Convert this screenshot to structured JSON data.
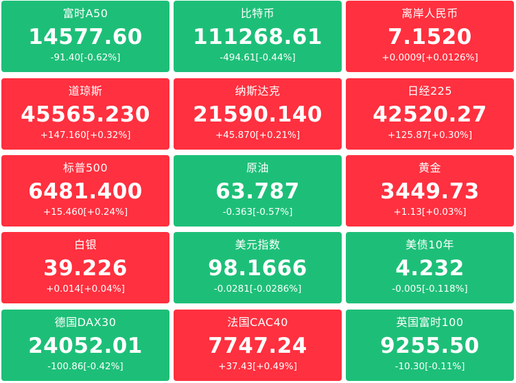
{
  "colors": {
    "up": "#ff303f",
    "down": "#1dbf78",
    "text": "#ffffff"
  },
  "tiles": [
    {
      "name": "富时A50",
      "price": "14577.60",
      "change": "-91.40[-0.62%]",
      "direction": "down"
    },
    {
      "name": "比特币",
      "price": "111268.61",
      "change": "-494.61[-0.44%]",
      "direction": "down"
    },
    {
      "name": "离岸人民币",
      "price": "7.1520",
      "change": "+0.0009[+0.0126%]",
      "direction": "up"
    },
    {
      "name": "道琼斯",
      "price": "45565.230",
      "change": "+147.160[+0.32%]",
      "direction": "up"
    },
    {
      "name": "纳斯达克",
      "price": "21590.140",
      "change": "+45.870[+0.21%]",
      "direction": "up"
    },
    {
      "name": "日经225",
      "price": "42520.27",
      "change": "+125.87[+0.30%]",
      "direction": "up"
    },
    {
      "name": "标普500",
      "price": "6481.400",
      "change": "+15.460[+0.24%]",
      "direction": "up"
    },
    {
      "name": "原油",
      "price": "63.787",
      "change": "-0.363[-0.57%]",
      "direction": "down"
    },
    {
      "name": "黄金",
      "price": "3449.73",
      "change": "+1.13[+0.03%]",
      "direction": "up"
    },
    {
      "name": "白银",
      "price": "39.226",
      "change": "+0.014[+0.04%]",
      "direction": "up"
    },
    {
      "name": "美元指数",
      "price": "98.1666",
      "change": "-0.0281[-0.0286%]",
      "direction": "down"
    },
    {
      "name": "美债10年",
      "price": "4.232",
      "change": "-0.005[-0.118%]",
      "direction": "down"
    },
    {
      "name": "德国DAX30",
      "price": "24052.01",
      "change": "-100.86[-0.42%]",
      "direction": "down"
    },
    {
      "name": "法国CAC40",
      "price": "7747.24",
      "change": "+37.43[+0.49%]",
      "direction": "up"
    },
    {
      "name": "英国富时100",
      "price": "9255.50",
      "change": "-10.30[-0.11%]",
      "direction": "down"
    }
  ]
}
